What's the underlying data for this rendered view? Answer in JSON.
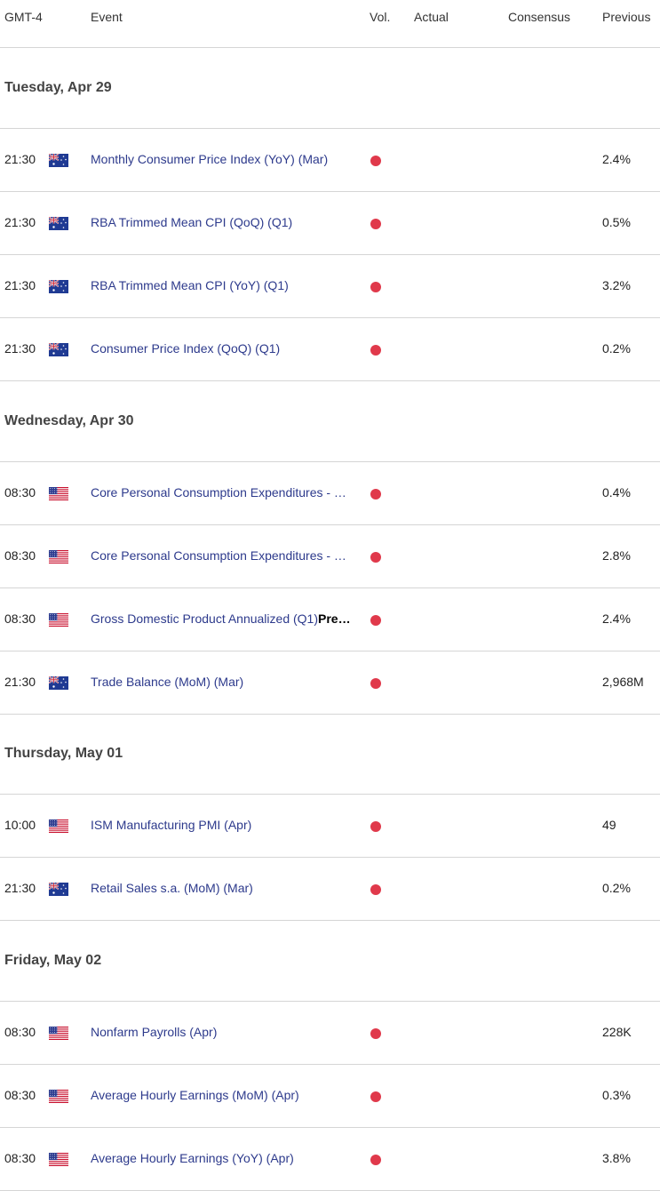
{
  "header": {
    "timezone": "GMT-4",
    "event": "Event",
    "vol": "Vol.",
    "actual": "Actual",
    "consensus": "Consensus",
    "previous": "Previous"
  },
  "colors": {
    "high_volatility": "#e0394b",
    "event_link": "#2d3a8c"
  },
  "days": [
    {
      "label": "Tuesday, Apr 29",
      "events": [
        {
          "time": "21:30",
          "flag": "australia-flag",
          "name": "Monthly Consumer Price Index (YoY) (Mar)",
          "previous": "2.4%"
        },
        {
          "time": "21:30",
          "flag": "australia-flag",
          "name": "RBA Trimmed Mean CPI (QoQ) (Q1)",
          "previous": "0.5%"
        },
        {
          "time": "21:30",
          "flag": "australia-flag",
          "name": "RBA Trimmed Mean CPI (YoY) (Q1)",
          "previous": "3.2%"
        },
        {
          "time": "21:30",
          "flag": "australia-flag",
          "name": "Consumer Price Index (QoQ) (Q1)",
          "previous": "0.2%"
        }
      ]
    },
    {
      "label": "Wednesday, Apr 30",
      "events": [
        {
          "time": "08:30",
          "flag": "us-flag",
          "name": "Core Personal Consumption Expenditures - …",
          "previous": "0.4%"
        },
        {
          "time": "08:30",
          "flag": "us-flag",
          "name": "Core Personal Consumption Expenditures - …",
          "previous": "2.8%"
        },
        {
          "time": "08:30",
          "flag": "us-flag",
          "name": "Gross Domestic Product Annualized (Q1)",
          "suffix": "Pre…",
          "previous": "2.4%"
        },
        {
          "time": "21:30",
          "flag": "australia-flag",
          "name": "Trade Balance (MoM) (Mar)",
          "previous": "2,968M"
        }
      ]
    },
    {
      "label": "Thursday, May 01",
      "events": [
        {
          "time": "10:00",
          "flag": "us-flag",
          "name": "ISM Manufacturing PMI (Apr)",
          "previous": "49"
        },
        {
          "time": "21:30",
          "flag": "australia-flag",
          "name": "Retail Sales s.a. (MoM) (Mar)",
          "previous": "0.2%"
        }
      ]
    },
    {
      "label": "Friday, May 02",
      "events": [
        {
          "time": "08:30",
          "flag": "us-flag",
          "name": "Nonfarm Payrolls (Apr)",
          "previous": "228K"
        },
        {
          "time": "08:30",
          "flag": "us-flag",
          "name": "Average Hourly Earnings (MoM) (Apr)",
          "previous": "0.3%"
        },
        {
          "time": "08:30",
          "flag": "us-flag",
          "name": "Average Hourly Earnings (YoY) (Apr)",
          "previous": "3.8%"
        }
      ]
    }
  ]
}
